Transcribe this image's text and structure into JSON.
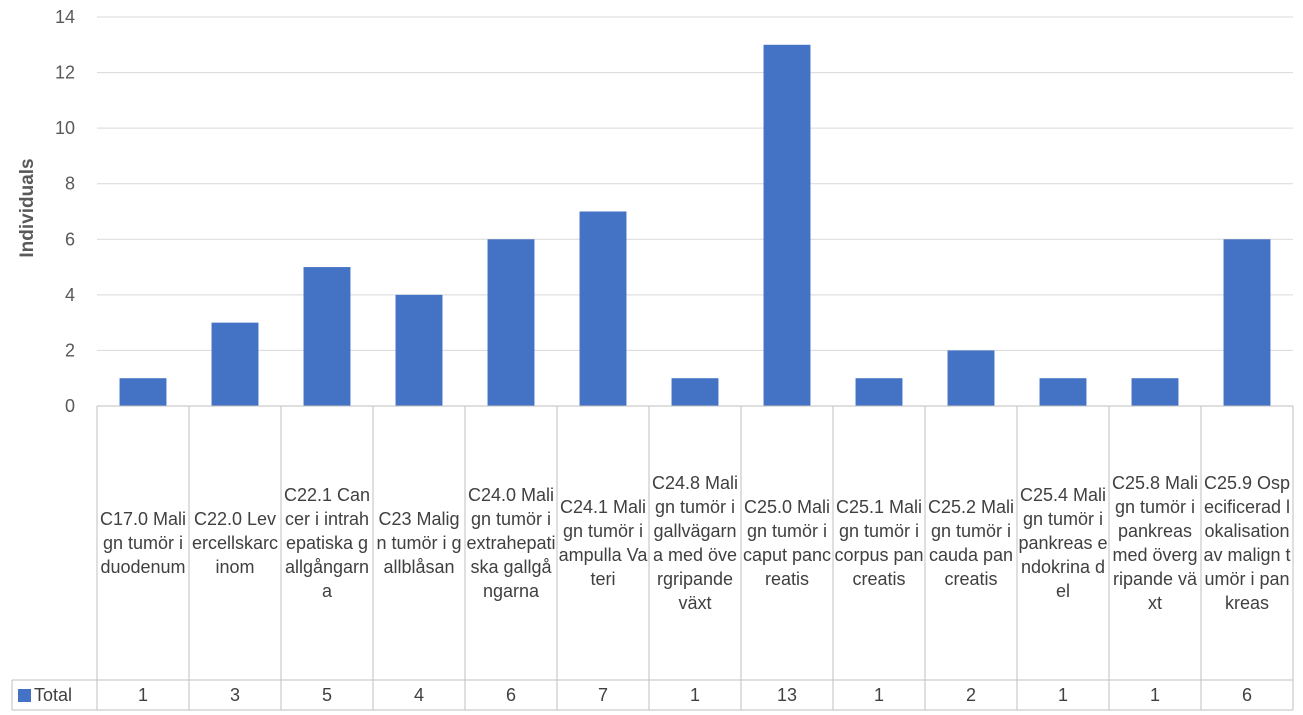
{
  "chart_data": {
    "type": "bar",
    "title": "",
    "xlabel": "",
    "ylabel": "Individuals",
    "ylim": [
      0,
      14
    ],
    "yticks": [
      0,
      2,
      4,
      6,
      8,
      10,
      12,
      14
    ],
    "grid": true,
    "legend": "data-table",
    "categories": [
      "C17.0 Malign tumör i duodenum",
      "C22.0 Levercellskarcinom",
      "C22.1 Cancer i intrahepatiska gallgångarna",
      "C23 Malign tumör i gallblåsan",
      "C24.0 Malign tumör i extrahepatiska gallgångarna",
      "C24.1 Malign tumör i ampulla Vateri",
      "C24.8 Malign tumör i gallvägarna med övergripande växt",
      "C25.0 Malign tumör i caput pancreatis",
      "C25.1 Malign tumör i corpus pancreatis",
      "C25.2 Malign tumör i cauda pancreatis",
      "C25.4 Malign tumör i pankreas endokrina del",
      "C25.8 Malign tumör i pankreas med övergripande växt",
      "C25.9 Ospecificerad lokalisation av malign tumör i pankreas"
    ],
    "series": [
      {
        "name": "Total",
        "values": [
          1,
          3,
          5,
          4,
          6,
          7,
          1,
          13,
          1,
          2,
          1,
          1,
          6
        ]
      }
    ]
  },
  "colors": {
    "bar": "#4472C4",
    "grid": "#d9d9d9",
    "table_border": "#bfbfbf"
  }
}
